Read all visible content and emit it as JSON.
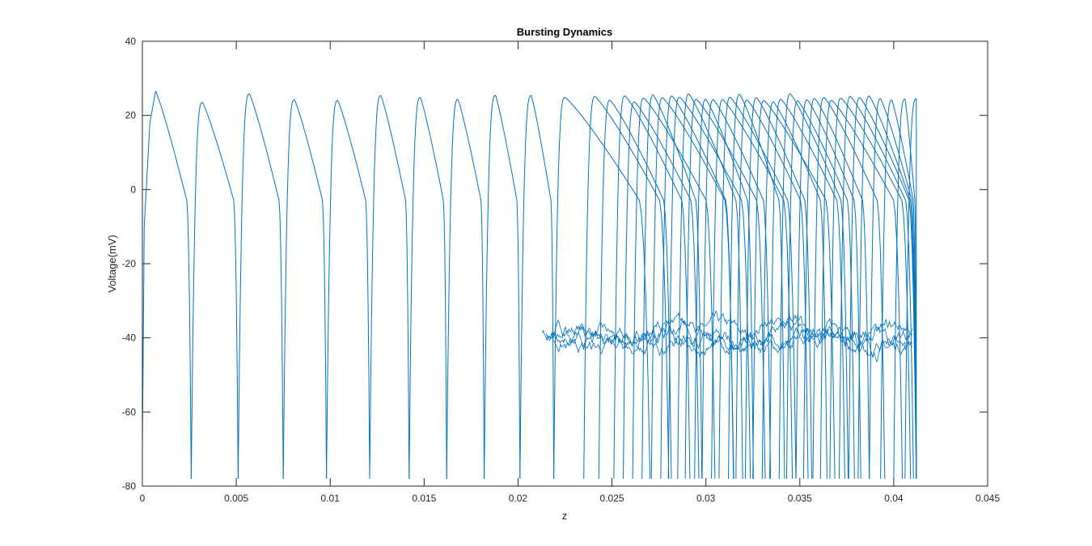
{
  "chart_data": {
    "type": "line",
    "title": "Bursting Dynamics",
    "xlabel": "z",
    "ylabel": "Voltage(mV)",
    "xlim": [
      0,
      0.045
    ],
    "ylim": [
      -80,
      40
    ],
    "xticks": [
      0,
      0.005,
      0.01,
      0.015,
      0.02,
      0.025,
      0.03,
      0.035,
      0.04,
      0.045
    ],
    "xtick_labels": [
      "0",
      "0.005",
      "0.01",
      "0.015",
      "0.02",
      "0.025",
      "0.03",
      "0.035",
      "0.04",
      "0.045"
    ],
    "yticks": [
      -80,
      -60,
      -40,
      -20,
      0,
      20,
      40
    ],
    "ytick_labels": [
      "-80",
      "-60",
      "-40",
      "-20",
      "0",
      "20",
      "40"
    ],
    "grid": false,
    "legend": "none",
    "line_color": "#0072BD",
    "series": [
      {
        "spike_times": [
          0.0026,
          0.0051,
          0.0075,
          0.0098,
          0.0121,
          0.0142,
          0.0162,
          0.0182,
          0.0201,
          0.0219,
          0.0235,
          0.0243,
          0.0251,
          0.0256,
          0.0261,
          0.0266,
          0.0271,
          0.0276,
          0.028,
          0.0285,
          0.0289,
          0.0294,
          0.0298,
          0.0303,
          0.0307,
          0.0312,
          0.0316,
          0.0321,
          0.0325,
          0.033,
          0.0334,
          0.0339,
          0.0343,
          0.0348,
          0.0352,
          0.0357,
          0.0361,
          0.0366,
          0.0371,
          0.0376,
          0.0381,
          0.0387,
          0.0393,
          0.04,
          0.0406,
          0.0412
        ],
        "spike_peak_mV": 25,
        "trough_mV": -78,
        "noisy_plateau_mV": -40,
        "noisy_plateau_range": [
          0.0213,
          0.041
        ]
      }
    ]
  }
}
